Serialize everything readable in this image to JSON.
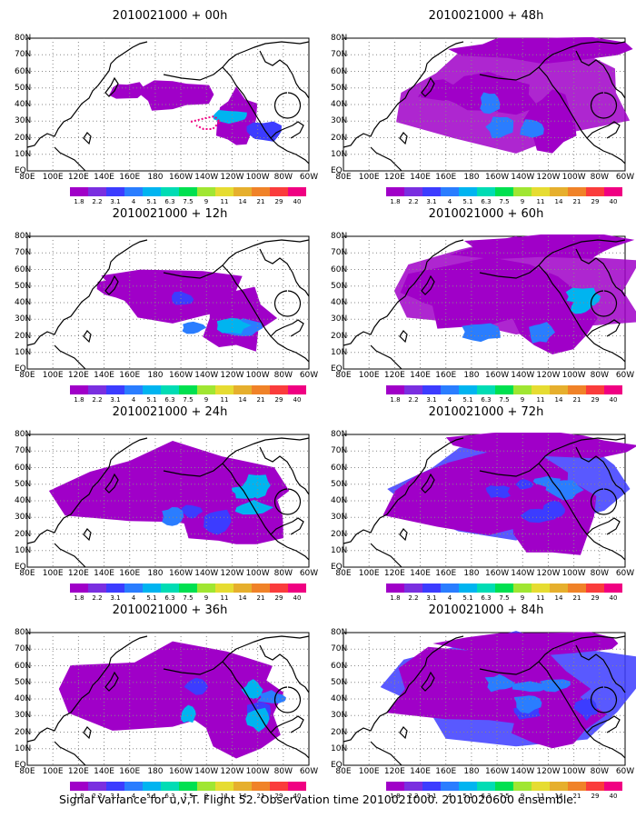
{
  "panels": [
    {
      "title": "2010021000 + 00h"
    },
    {
      "title": "2010021000 + 48h"
    },
    {
      "title": "2010021000 + 12h"
    },
    {
      "title": "2010021000 + 60h"
    },
    {
      "title": "2010021000 + 24h"
    },
    {
      "title": "2010021000 + 72h"
    },
    {
      "title": "2010021000 + 36h"
    },
    {
      "title": "2010021000 + 84h"
    }
  ],
  "axes": {
    "lat_labels": [
      "80N",
      "70N",
      "60N",
      "50N",
      "40N",
      "30N",
      "20N",
      "10N",
      "EQ"
    ],
    "lon_labels": [
      "80E",
      "100E",
      "120E",
      "140E",
      "160E",
      "180",
      "160W",
      "140W",
      "120W",
      "100W",
      "80W",
      "60W"
    ]
  },
  "colorbar": {
    "labels": [
      "1.8",
      "2.2",
      "3.1",
      "4",
      "5.1",
      "6.3",
      "7.5",
      "9",
      "11",
      "14",
      "21",
      "29",
      "40"
    ],
    "colors": [
      "#a000c8",
      "#7a2fe0",
      "#3c3cff",
      "#2a7dff",
      "#00b4f0",
      "#00dcb4",
      "#00e050",
      "#a0e632",
      "#e6dc32",
      "#e6af2d",
      "#f08228",
      "#fa3c3c",
      "#f00082"
    ]
  },
  "caption": "Signal Variance for u,v,T. Flight 52. Observation time 2010021000. 2010020600 ensemble."
}
